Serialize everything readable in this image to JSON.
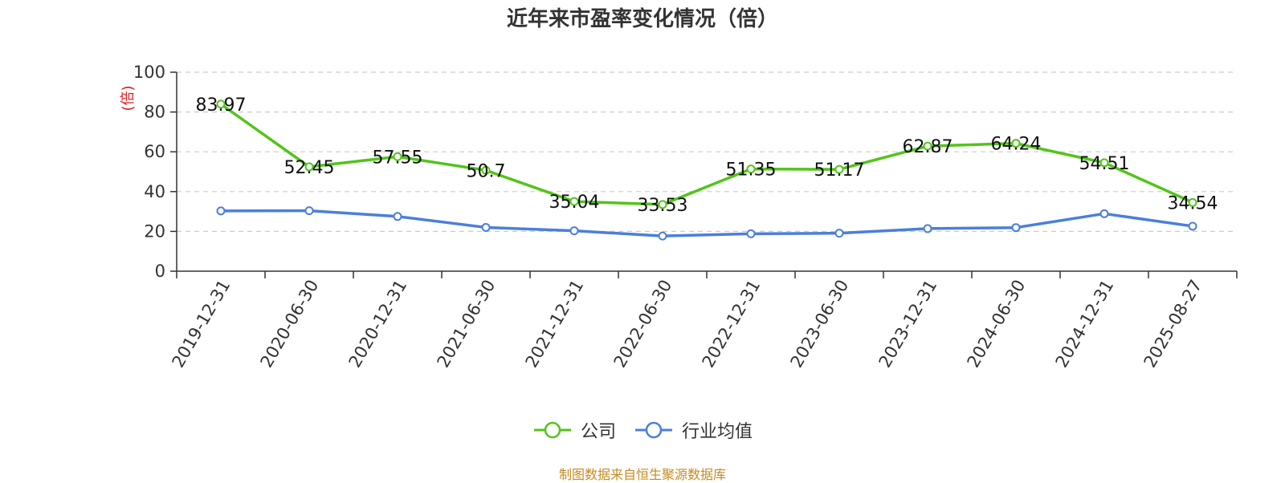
{
  "chart_data": {
    "type": "line",
    "title": "近年来市盈率变化情况（倍）",
    "ylabel": "(倍)",
    "ylim": [
      0,
      100
    ],
    "yticks": [
      0,
      20,
      40,
      60,
      80,
      100
    ],
    "grid": true,
    "legend_position": "bottom",
    "categories": [
      "2019-12-31",
      "2020-06-30",
      "2020-12-31",
      "2021-06-30",
      "2021-12-31",
      "2022-06-30",
      "2022-12-31",
      "2023-06-30",
      "2023-12-31",
      "2024-06-30",
      "2024-12-31",
      "2025-08-27"
    ],
    "series": [
      {
        "name": "公司",
        "color": "#52c41a",
        "values": [
          83.97,
          52.45,
          57.55,
          50.7,
          35.04,
          33.53,
          51.35,
          51.17,
          62.87,
          64.24,
          54.51,
          34.54
        ],
        "labels": [
          "83.97",
          "52.45",
          "57.55",
          "50.7",
          "35.04",
          "33.53",
          "51.35",
          "51.17",
          "62.87",
          "64.24",
          "54.51",
          "34.54"
        ]
      },
      {
        "name": "行业均值",
        "color": "#4a7fdc",
        "values": [
          30.3,
          30.4,
          27.5,
          22.0,
          20.3,
          17.7,
          18.8,
          19.1,
          21.4,
          21.9,
          28.9,
          22.6
        ]
      }
    ]
  },
  "source_note": "制图数据来自恒生聚源数据库",
  "colors": {
    "axis": "#333333",
    "grid": "#cccccc",
    "ylabel": "#e02020",
    "source": "#c58a22"
  }
}
